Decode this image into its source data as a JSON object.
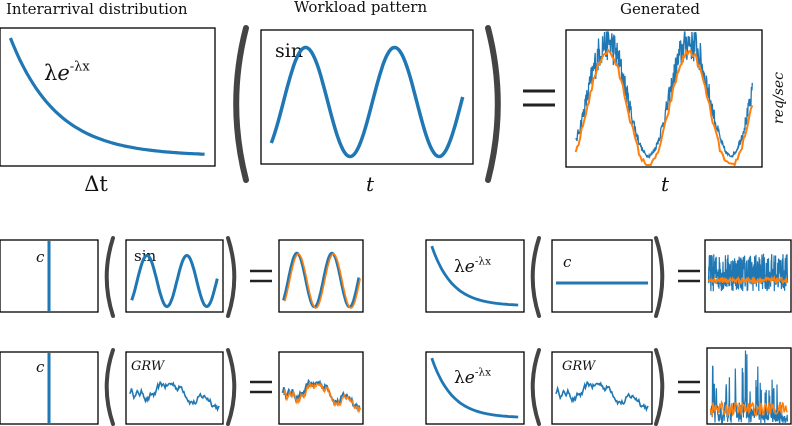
{
  "titles": {
    "interarrival": "Interarrival distribution",
    "workload": "Workload pattern",
    "generated": "Generated"
  },
  "labels": {
    "lambda_formula_lambda": "λ",
    "lambda_formula_e": "e",
    "lambda_formula_exp": "-λx",
    "sin": "sin",
    "c": "c",
    "grw": "GRW",
    "delta_t": "Δt",
    "t": "t",
    "req_sec": "req/sec",
    "equals": "="
  },
  "colors": {
    "blue": "#1f77b4",
    "orange": "#ff7f0e",
    "frame": "#000000",
    "paren": "#444444"
  },
  "rows": [
    {
      "left": "exponential",
      "middle": "sin",
      "output": "sin-noisy"
    },
    {
      "left": "constant",
      "middle": "sin",
      "output": "sin-clean"
    },
    {
      "left": "exponential",
      "middle": "constant",
      "output": "flat-noisy"
    },
    {
      "left": "constant",
      "middle": "grw",
      "output": "grw-clean"
    },
    {
      "left": "exponential",
      "middle": "grw",
      "output": "grw-noisy"
    }
  ]
}
